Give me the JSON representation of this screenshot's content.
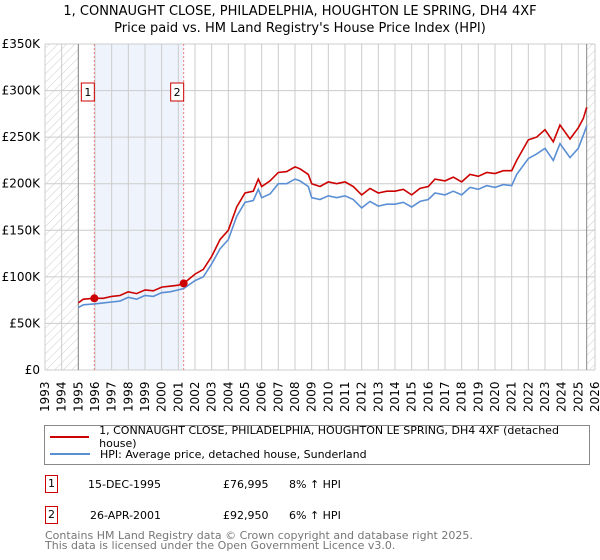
{
  "title_line1": "1, CONNAUGHT CLOSE, PHILADELPHIA, HOUGHTON LE SPRING, DH4 4XF",
  "title_line2": "Price paid vs. HM Land Registry's House Price Index (HPI)",
  "colors": {
    "property": "#cc0000",
    "hpi": "#5b8fd4",
    "shade": "#eef3fc",
    "grid": "#cccccc"
  },
  "chart_data": {
    "type": "line",
    "title": "Price paid vs. HM Land Registry's House Price Index (HPI)",
    "xlim": [
      1993,
      2026
    ],
    "ylim": [
      0,
      350000
    ],
    "y_ticks": [
      0,
      50000,
      100000,
      150000,
      200000,
      250000,
      300000,
      350000
    ],
    "y_tick_labels": [
      "£0",
      "£50K",
      "£100K",
      "£150K",
      "£200K",
      "£250K",
      "£300K",
      "£350K"
    ],
    "x_ticks": [
      "1993",
      "1994",
      "1995",
      "1996",
      "1997",
      "1998",
      "1999",
      "2000",
      "2001",
      "2002",
      "2003",
      "2004",
      "2005",
      "2006",
      "2007",
      "2008",
      "2009",
      "2010",
      "2011",
      "2012",
      "2013",
      "2014",
      "2015",
      "2016",
      "2017",
      "2018",
      "2019",
      "2020",
      "2021",
      "2022",
      "2023",
      "2024",
      "2025",
      "2026"
    ],
    "grid": true,
    "data_start": 1995.0,
    "data_end": 2025.5,
    "series": [
      {
        "name": "1, CONNAUGHT CLOSE, PHILADELPHIA, HOUGHTON LE SPRING, DH4 4XF (detached house)",
        "x": [
          1995.0,
          1995.3,
          1995.96,
          1996.5,
          1997,
          1997.5,
          1998,
          1998.5,
          1999,
          1999.5,
          2000,
          2000.5,
          2001,
          2001.32,
          2002,
          2002.5,
          2003,
          2003.5,
          2004,
          2004.5,
          2005,
          2005.5,
          2005.8,
          2006,
          2006.5,
          2007,
          2007.5,
          2008,
          2008.3,
          2008.8,
          2009,
          2009.5,
          2010,
          2010.5,
          2011,
          2011.5,
          2012,
          2012.5,
          2013,
          2013.5,
          2014,
          2014.5,
          2015,
          2015.5,
          2016,
          2016.4,
          2017,
          2017.5,
          2018,
          2018.5,
          2019,
          2019.5,
          2020,
          2020.5,
          2021,
          2021.3,
          2022,
          2022.5,
          2023,
          2023.5,
          2023.9,
          2024.5,
          2025,
          2025.3,
          2025.5
        ],
        "y": [
          72000,
          76000,
          76995,
          77000,
          79000,
          80000,
          84000,
          82000,
          86000,
          85000,
          89000,
          90000,
          91000,
          92950,
          103000,
          108000,
          122000,
          140000,
          150000,
          175000,
          190000,
          192000,
          205000,
          197000,
          203000,
          212000,
          213000,
          218000,
          216000,
          210000,
          200000,
          197000,
          202000,
          200000,
          202000,
          197000,
          188000,
          195000,
          190000,
          192000,
          192000,
          194000,
          188000,
          195000,
          197000,
          205000,
          203000,
          207000,
          202000,
          210000,
          208000,
          212000,
          211000,
          214000,
          214000,
          225000,
          247000,
          250000,
          258000,
          245000,
          263000,
          248000,
          260000,
          270000,
          282000
        ]
      },
      {
        "name": "HPI: Average price, detached house, Sunderland",
        "x": [
          1995.0,
          1995.3,
          1995.96,
          1996.5,
          1997,
          1997.5,
          1998,
          1998.5,
          1999,
          1999.5,
          2000,
          2000.5,
          2001,
          2001.32,
          2002,
          2002.5,
          2003,
          2003.5,
          2004,
          2004.5,
          2005,
          2005.5,
          2005.8,
          2006,
          2006.5,
          2007,
          2007.5,
          2008,
          2008.3,
          2008.8,
          2009,
          2009.5,
          2010,
          2010.5,
          2011,
          2011.5,
          2012,
          2012.5,
          2013,
          2013.5,
          2014,
          2014.5,
          2015,
          2015.5,
          2016,
          2016.4,
          2017,
          2017.5,
          2018,
          2018.5,
          2019,
          2019.5,
          2020,
          2020.5,
          2021,
          2021.3,
          2022,
          2022.5,
          2023,
          2023.5,
          2023.9,
          2024.5,
          2025,
          2025.3,
          2025.5
        ],
        "y": [
          67000,
          70000,
          71000,
          72000,
          73000,
          74000,
          78000,
          76000,
          80000,
          79000,
          83000,
          84000,
          86000,
          87500,
          96000,
          100000,
          114000,
          130000,
          140000,
          165000,
          180000,
          182000,
          194000,
          185000,
          189000,
          200000,
          200000,
          205000,
          203000,
          197000,
          185000,
          183000,
          187000,
          185000,
          187000,
          183000,
          174000,
          181000,
          176000,
          178000,
          178000,
          180000,
          175000,
          181000,
          183000,
          190000,
          188000,
          192000,
          188000,
          196000,
          194000,
          198000,
          196000,
          199000,
          198000,
          210000,
          227000,
          232000,
          238000,
          225000,
          243000,
          228000,
          238000,
          252000,
          262000
        ]
      }
    ],
    "sales": [
      {
        "label": "1",
        "x": 1995.96,
        "y": 76995
      },
      {
        "label": "2",
        "x": 2001.32,
        "y": 92950
      }
    ],
    "legend_placement": "bottom"
  },
  "legend": {
    "property_label": "1, CONNAUGHT CLOSE, PHILADELPHIA, HOUGHTON LE SPRING, DH4 4XF (detached house)",
    "hpi_label": "HPI: Average price, detached house, Sunderland"
  },
  "transactions": [
    {
      "num": "1",
      "date": "15-DEC-1995",
      "price": "£76,995",
      "hpi": "8% ↑ HPI"
    },
    {
      "num": "2",
      "date": "26-APR-2001",
      "price": "£92,950",
      "hpi": "6% ↑ HPI"
    }
  ],
  "footer_line1": "Contains HM Land Registry data © Crown copyright and database right 2025.",
  "footer_line2": "This data is licensed under the Open Government Licence v3.0."
}
